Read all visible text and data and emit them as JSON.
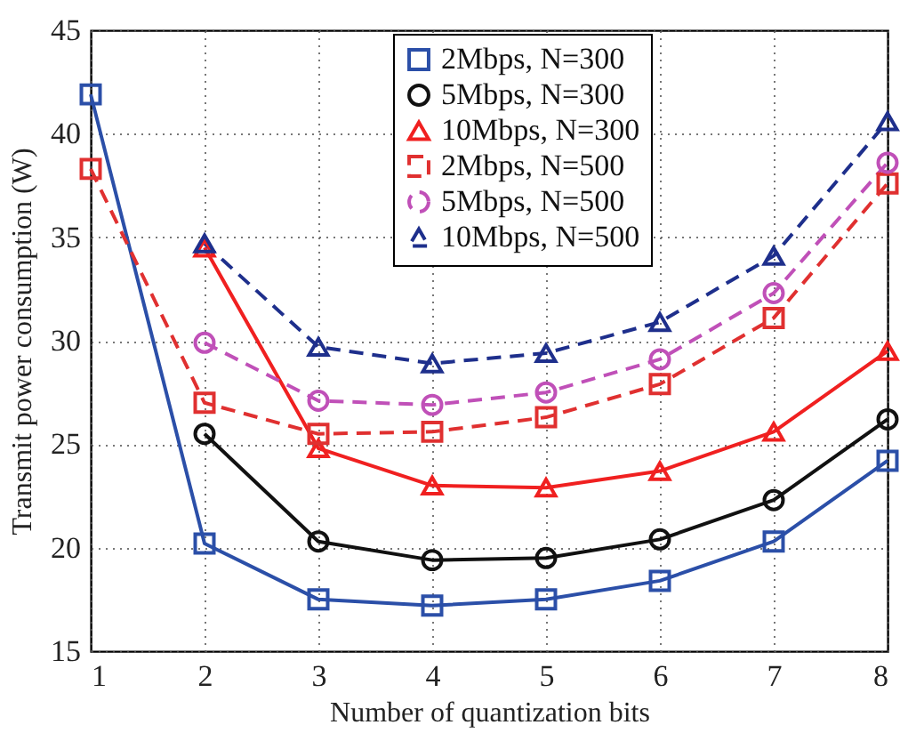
{
  "chart_data": {
    "type": "line",
    "xlabel": "Number of quantization bits",
    "ylabel": "Transmit power consumption (W)",
    "x": [
      1,
      2,
      3,
      4,
      5,
      6,
      7,
      8
    ],
    "xlim": [
      1,
      8
    ],
    "xticks": [
      1,
      2,
      3,
      4,
      5,
      6,
      7,
      8
    ],
    "ylim": [
      15,
      45
    ],
    "yticks": [
      15,
      20,
      25,
      30,
      35,
      40,
      45
    ],
    "grid": true,
    "legend": "top right",
    "series": [
      {
        "name": "2Mbps, N=300",
        "color": "#2b4fa8",
        "marker": "square",
        "line_style": "solid",
        "values": [
          41.9,
          20.2,
          17.5,
          17.2,
          17.5,
          18.4,
          20.3,
          24.2
        ]
      },
      {
        "name": "5Mbps, N=300",
        "color": "#111111",
        "marker": "circle",
        "line_style": "solid",
        "values": [
          null,
          25.5,
          20.3,
          19.4,
          19.5,
          20.4,
          22.3,
          26.2
        ]
      },
      {
        "name": "10Mbps, N=300",
        "color": "#f02020",
        "marker": "triangle",
        "line_style": "solid",
        "values": [
          null,
          34.5,
          24.8,
          23.0,
          22.9,
          23.7,
          25.6,
          29.5
        ]
      },
      {
        "name": "2Mbps, N=500",
        "color": "#e03030",
        "marker": "square",
        "line_style": "dashed",
        "values": [
          38.3,
          27.0,
          25.5,
          25.6,
          26.3,
          27.9,
          31.1,
          37.6
        ]
      },
      {
        "name": "5Mbps, N=500",
        "color": "#c050b8",
        "marker": "circle",
        "line_style": "dashed",
        "values": [
          null,
          29.9,
          27.1,
          26.9,
          27.5,
          29.1,
          32.3,
          38.6
        ]
      },
      {
        "name": "10Mbps, N=500",
        "color": "#1e2f8c",
        "marker": "triangle",
        "line_style": "dashed",
        "values": [
          null,
          34.7,
          29.7,
          28.9,
          29.4,
          30.9,
          34.1,
          40.6
        ]
      }
    ]
  }
}
